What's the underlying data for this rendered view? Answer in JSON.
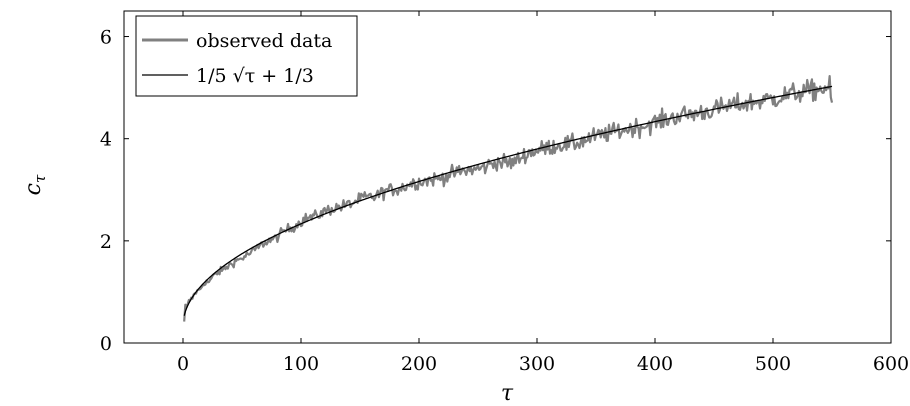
{
  "chart_data": {
    "type": "line",
    "x_label": "τ",
    "y_label": "c",
    "y_label_subscript": "τ",
    "x_lim": [
      -50,
      600
    ],
    "y_lim": [
      0,
      6.5
    ],
    "x_ticks": [
      0,
      100,
      200,
      300,
      400,
      500,
      600
    ],
    "y_ticks": [
      0,
      2,
      4,
      6
    ],
    "grid": false,
    "legend_position": "top-left",
    "series": [
      {
        "name": "observed data",
        "color": "#808080",
        "style": "noisy",
        "x_range": [
          1,
          550
        ],
        "noise_scale": 0.062,
        "points": [
          [
            1,
            0.42
          ],
          [
            2,
            0.75
          ],
          [
            3,
            0.68
          ],
          [
            5,
            0.82
          ],
          [
            8,
            0.88
          ],
          [
            10,
            0.98
          ],
          [
            14,
            1.04
          ],
          [
            18,
            1.18
          ],
          [
            22,
            1.2
          ],
          [
            27,
            1.34
          ],
          [
            32,
            1.41
          ],
          [
            38,
            1.5
          ],
          [
            44,
            1.6
          ],
          [
            50,
            1.66
          ],
          [
            57,
            1.76
          ],
          [
            63,
            1.86
          ],
          [
            70,
            1.98
          ],
          [
            78,
            2.04
          ],
          [
            86,
            2.2
          ],
          [
            94,
            2.28
          ],
          [
            103,
            2.43
          ],
          [
            112,
            2.48
          ],
          [
            122,
            2.6
          ],
          [
            132,
            2.66
          ],
          [
            142,
            2.72
          ],
          [
            152,
            2.84
          ],
          [
            162,
            2.86
          ],
          [
            172,
            2.98
          ],
          [
            183,
            3.02
          ],
          [
            194,
            3.13
          ],
          [
            205,
            3.18
          ],
          [
            217,
            3.22
          ],
          [
            229,
            3.32
          ],
          [
            241,
            3.38
          ],
          [
            253,
            3.42
          ],
          [
            266,
            3.55
          ],
          [
            279,
            3.52
          ],
          [
            292,
            3.72
          ],
          [
            305,
            3.8
          ],
          [
            318,
            3.88
          ],
          [
            332,
            3.9
          ],
          [
            346,
            4.02
          ],
          [
            360,
            4.1
          ],
          [
            375,
            4.18
          ],
          [
            390,
            4.25
          ],
          [
            405,
            4.35
          ],
          [
            420,
            4.45
          ],
          [
            436,
            4.5
          ],
          [
            452,
            4.58
          ],
          [
            468,
            4.66
          ],
          [
            484,
            4.72
          ],
          [
            500,
            4.78
          ],
          [
            516,
            4.88
          ],
          [
            532,
            4.94
          ],
          [
            548,
            5.0
          ],
          [
            550,
            4.6
          ]
        ]
      },
      {
        "name": "1/5 √τ + 1/3",
        "color": "#000000",
        "style": "smooth",
        "function": "sqrt",
        "coefficient": 0.2,
        "intercept": 0.3333,
        "x_range": [
          1,
          550
        ]
      }
    ]
  }
}
